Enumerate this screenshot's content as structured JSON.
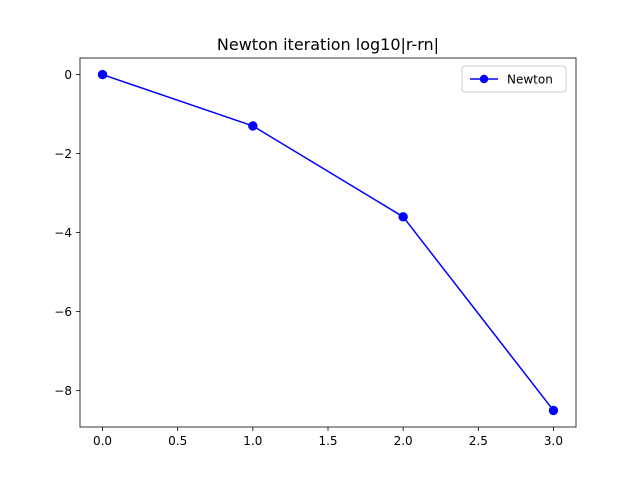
{
  "chart_data": {
    "type": "line",
    "title": "Newton iteration log10|r-rn|",
    "xlabel": "",
    "ylabel": "",
    "xlim": [
      -0.15,
      3.15
    ],
    "ylim": [
      -8.92,
      0.42
    ],
    "xticks": [
      0.0,
      0.5,
      1.0,
      1.5,
      2.0,
      2.5,
      3.0
    ],
    "xtick_labels": [
      "0.0",
      "0.5",
      "1.0",
      "1.5",
      "2.0",
      "2.5",
      "3.0"
    ],
    "yticks": [
      0,
      -2,
      -4,
      -6,
      -8
    ],
    "ytick_labels": [
      "0",
      "−2",
      "−4",
      "−6",
      "−8"
    ],
    "grid": false,
    "legend_position": "upper right",
    "series": [
      {
        "name": "Newton",
        "color": "#0000ff",
        "marker": "circle",
        "x": [
          0,
          1,
          2,
          3
        ],
        "y": [
          0.0,
          -1.3,
          -3.6,
          -8.5
        ]
      }
    ]
  }
}
